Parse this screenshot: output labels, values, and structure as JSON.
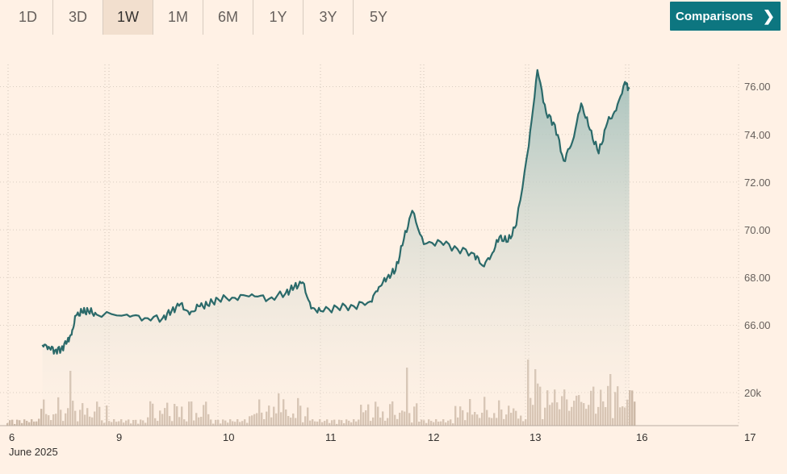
{
  "range_tabs": [
    {
      "label": "1D",
      "active": false
    },
    {
      "label": "3D",
      "active": false
    },
    {
      "label": "1W",
      "active": true
    },
    {
      "label": "1M",
      "active": false
    },
    {
      "label": "6M",
      "active": false
    },
    {
      "label": "1Y",
      "active": false
    },
    {
      "label": "3Y",
      "active": false
    },
    {
      "label": "5Y",
      "active": false
    }
  ],
  "comparisons_button": {
    "label": "Comparisons",
    "icon": "chevron-right-icon"
  },
  "colors": {
    "line": "#2b6a6a",
    "fill_top": "#a7c2bd",
    "fill_bottom": "#fff1e5",
    "volume": "#cdb9a7",
    "grid": "#c9bfb4",
    "accent": "#0d7680"
  },
  "chart_data": {
    "type": "line",
    "title": "",
    "price_axis": {
      "ticks": [
        "66.00",
        "68.00",
        "70.00",
        "72.00",
        "74.00",
        "76.00"
      ],
      "min": 65.0,
      "max": 77.0
    },
    "volume_axis": {
      "ticks": [
        "20k"
      ]
    },
    "x_ticks": [
      "6",
      "9",
      "10",
      "11",
      "12",
      "13",
      "16",
      "17"
    ],
    "x_sublabel": "June 2025",
    "price_series": [
      {
        "x": "Jun 6 09:00",
        "y": 65.18
      },
      {
        "x": "Jun 6 10:30",
        "y": 65.1
      },
      {
        "x": "Jun 6 12:00",
        "y": 64.95
      },
      {
        "x": "Jun 6 13:30",
        "y": 65.0
      },
      {
        "x": "Jun 6 15:00",
        "y": 65.35
      },
      {
        "x": "Jun 6 16:00",
        "y": 65.6
      },
      {
        "x": "Jun 6 17:00",
        "y": 66.4
      },
      {
        "x": "Jun 6 18:30",
        "y": 66.55
      },
      {
        "x": "Jun 6 20:00",
        "y": 66.6
      },
      {
        "x": "Jun 6 22:00",
        "y": 66.45
      },
      {
        "x": "Jun 9 04:00",
        "y": 66.45
      },
      {
        "x": "Jun 9 08:00",
        "y": 66.3
      },
      {
        "x": "Jun 9 12:00",
        "y": 66.3
      },
      {
        "x": "Jun 9 14:00",
        "y": 66.6
      },
      {
        "x": "Jun 9 16:00",
        "y": 66.9
      },
      {
        "x": "Jun 9 18:00",
        "y": 66.45
      },
      {
        "x": "Jun 9 20:00",
        "y": 66.8
      },
      {
        "x": "Jun 9 22:00",
        "y": 66.85
      },
      {
        "x": "Jun 10 00:00",
        "y": 67.1
      },
      {
        "x": "Jun 10 04:00",
        "y": 67.15
      },
      {
        "x": "Jun 10 08:00",
        "y": 67.3
      },
      {
        "x": "Jun 10 12:00",
        "y": 67.1
      },
      {
        "x": "Jun 10 16:00",
        "y": 67.35
      },
      {
        "x": "Jun 10 18:00",
        "y": 67.6
      },
      {
        "x": "Jun 10 20:00",
        "y": 67.8
      },
      {
        "x": "Jun 10 22:00",
        "y": 66.7
      },
      {
        "x": "Jun 11 00:00",
        "y": 66.6
      },
      {
        "x": "Jun 11 04:00",
        "y": 66.75
      },
      {
        "x": "Jun 11 08:00",
        "y": 66.8
      },
      {
        "x": "Jun 11 12:00",
        "y": 67.0
      },
      {
        "x": "Jun 11 14:00",
        "y": 67.6
      },
      {
        "x": "Jun 11 16:00",
        "y": 68.0
      },
      {
        "x": "Jun 11 18:00",
        "y": 68.3
      },
      {
        "x": "Jun 11 20:00",
        "y": 69.6
      },
      {
        "x": "Jun 11 22:00",
        "y": 70.8
      },
      {
        "x": "Jun 12 00:00",
        "y": 69.4
      },
      {
        "x": "Jun 12 04:00",
        "y": 69.5
      },
      {
        "x": "Jun 12 08:00",
        "y": 69.2
      },
      {
        "x": "Jun 12 12:00",
        "y": 69.0
      },
      {
        "x": "Jun 12 14:00",
        "y": 68.5
      },
      {
        "x": "Jun 12 16:00",
        "y": 68.9
      },
      {
        "x": "Jun 12 18:00",
        "y": 69.7
      },
      {
        "x": "Jun 12 20:00",
        "y": 69.5
      },
      {
        "x": "Jun 12 22:00",
        "y": 70.2
      },
      {
        "x": "Jun 13 00:00",
        "y": 73.5
      },
      {
        "x": "Jun 13 02:00",
        "y": 76.7
      },
      {
        "x": "Jun 13 04:00",
        "y": 74.9
      },
      {
        "x": "Jun 13 06:00",
        "y": 74.4
      },
      {
        "x": "Jun 13 08:00",
        "y": 72.9
      },
      {
        "x": "Jun 13 10:00",
        "y": 73.7
      },
      {
        "x": "Jun 13 12:00",
        "y": 75.3
      },
      {
        "x": "Jun 13 14:00",
        "y": 74.2
      },
      {
        "x": "Jun 13 16:00",
        "y": 73.2
      },
      {
        "x": "Jun 13 18:00",
        "y": 74.5
      },
      {
        "x": "Jun 13 20:00",
        "y": 75.0
      },
      {
        "x": "Jun 13 22:00",
        "y": 76.2
      },
      {
        "x": "Jun 13 23:00",
        "y": 75.9
      }
    ],
    "volume_series": "thousands of contracts per interval; peaks near 13 June"
  }
}
